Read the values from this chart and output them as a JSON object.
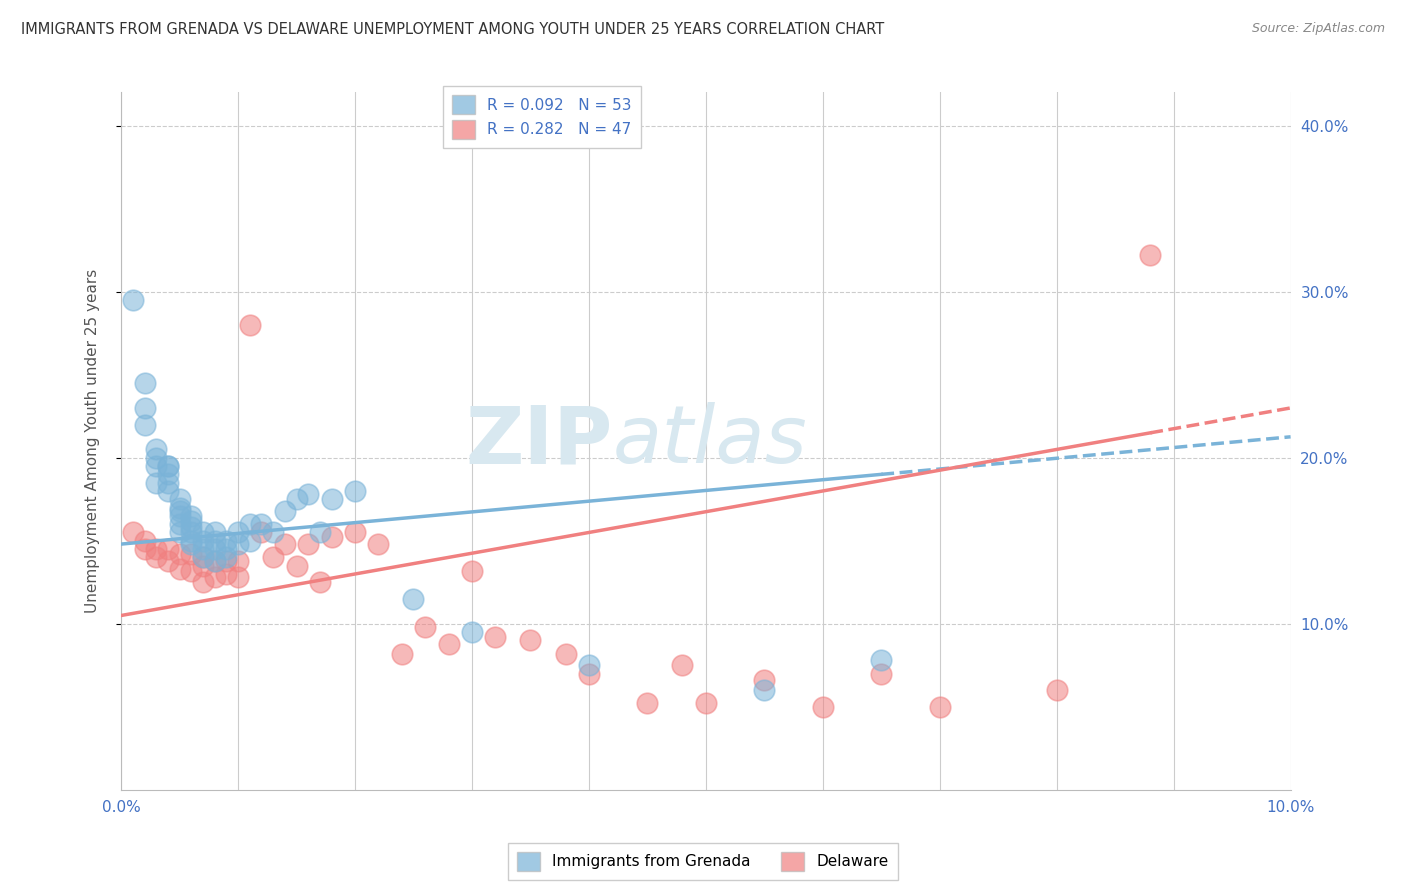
{
  "title": "IMMIGRANTS FROM GRENADA VS DELAWARE UNEMPLOYMENT AMONG YOUTH UNDER 25 YEARS CORRELATION CHART",
  "source": "Source: ZipAtlas.com",
  "ylabel": "Unemployment Among Youth under 25 years",
  "xlabel": "",
  "xlim": [
    0.0,
    0.1
  ],
  "ylim": [
    0.0,
    0.42
  ],
  "series1_label": "Immigrants from Grenada",
  "series1_color": "#7ab3d8",
  "series1_R": 0.092,
  "series1_N": 53,
  "series2_label": "Delaware",
  "series2_color": "#f08080",
  "series2_R": 0.282,
  "series2_N": 47,
  "watermark_zip": "ZIP",
  "watermark_atlas": "atlas",
  "ytick_labels": [
    "10.0%",
    "20.0%",
    "30.0%",
    "40.0%"
  ],
  "ytick_vals": [
    0.1,
    0.2,
    0.3,
    0.4
  ],
  "xtick_vals": [
    0.0,
    0.01,
    0.02,
    0.03,
    0.04,
    0.05,
    0.06,
    0.07,
    0.08,
    0.09,
    0.1
  ],
  "series1_x": [
    0.001,
    0.002,
    0.002,
    0.002,
    0.003,
    0.003,
    0.003,
    0.003,
    0.004,
    0.004,
    0.004,
    0.004,
    0.004,
    0.005,
    0.005,
    0.005,
    0.005,
    0.005,
    0.005,
    0.006,
    0.006,
    0.006,
    0.006,
    0.006,
    0.006,
    0.007,
    0.007,
    0.007,
    0.007,
    0.008,
    0.008,
    0.008,
    0.008,
    0.009,
    0.009,
    0.009,
    0.01,
    0.01,
    0.011,
    0.011,
    0.012,
    0.013,
    0.014,
    0.015,
    0.016,
    0.017,
    0.018,
    0.02,
    0.025,
    0.03,
    0.04,
    0.055,
    0.065
  ],
  "series1_y": [
    0.295,
    0.245,
    0.23,
    0.22,
    0.205,
    0.2,
    0.195,
    0.185,
    0.195,
    0.195,
    0.19,
    0.185,
    0.18,
    0.175,
    0.17,
    0.168,
    0.165,
    0.16,
    0.155,
    0.165,
    0.162,
    0.158,
    0.155,
    0.15,
    0.148,
    0.155,
    0.15,
    0.145,
    0.14,
    0.155,
    0.15,
    0.145,
    0.138,
    0.15,
    0.145,
    0.14,
    0.155,
    0.148,
    0.16,
    0.15,
    0.16,
    0.155,
    0.168,
    0.175,
    0.178,
    0.155,
    0.175,
    0.18,
    0.115,
    0.095,
    0.075,
    0.06,
    0.078
  ],
  "series2_x": [
    0.001,
    0.002,
    0.002,
    0.003,
    0.003,
    0.004,
    0.004,
    0.005,
    0.005,
    0.006,
    0.006,
    0.007,
    0.007,
    0.007,
    0.008,
    0.008,
    0.009,
    0.009,
    0.01,
    0.01,
    0.011,
    0.012,
    0.013,
    0.014,
    0.015,
    0.016,
    0.017,
    0.018,
    0.02,
    0.022,
    0.024,
    0.026,
    0.028,
    0.03,
    0.032,
    0.035,
    0.038,
    0.04,
    0.045,
    0.048,
    0.05,
    0.055,
    0.06,
    0.065,
    0.07,
    0.08,
    0.088
  ],
  "series2_y": [
    0.155,
    0.15,
    0.145,
    0.145,
    0.14,
    0.145,
    0.138,
    0.142,
    0.133,
    0.142,
    0.132,
    0.14,
    0.135,
    0.125,
    0.138,
    0.128,
    0.138,
    0.13,
    0.138,
    0.128,
    0.28,
    0.155,
    0.14,
    0.148,
    0.135,
    0.148,
    0.125,
    0.152,
    0.155,
    0.148,
    0.082,
    0.098,
    0.088,
    0.132,
    0.092,
    0.09,
    0.082,
    0.07,
    0.052,
    0.075,
    0.052,
    0.066,
    0.05,
    0.07,
    0.05,
    0.06,
    0.322
  ],
  "blue_trend_x0": 0.0,
  "blue_trend_y0": 0.148,
  "blue_trend_x1": 0.065,
  "blue_trend_y1": 0.19,
  "pink_trend_x0": 0.0,
  "pink_trend_y0": 0.105,
  "pink_trend_x1": 0.088,
  "pink_trend_y1": 0.215
}
